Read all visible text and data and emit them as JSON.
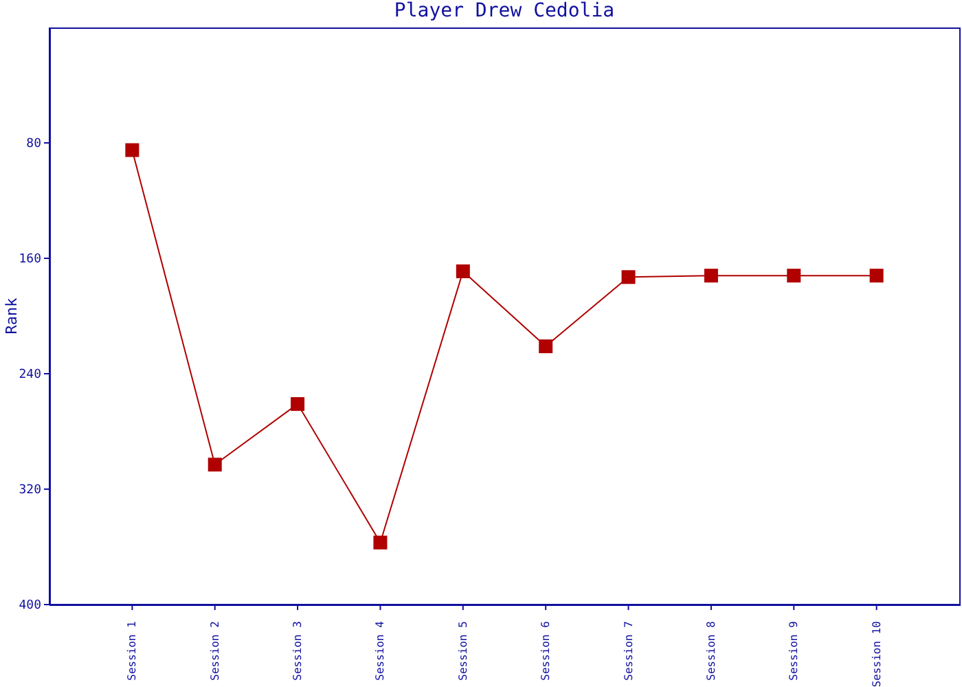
{
  "chart_data": {
    "type": "line",
    "title": "Player Drew Cedolia",
    "ylabel": "Rank",
    "categories": [
      "Session 1",
      "Session 2",
      "Session 3",
      "Session 4",
      "Session 5",
      "Session 6",
      "Session 7",
      "Session 8",
      "Session 9",
      "Session 10"
    ],
    "series": [
      {
        "color": "#b00000",
        "values": [
          85,
          303,
          261,
          357,
          169,
          221,
          173,
          172,
          172,
          172
        ]
      }
    ],
    "ylim": [
      400,
      0
    ],
    "yticks": [
      80,
      160,
      240,
      320,
      400
    ],
    "marker": "square",
    "line_style": "solid",
    "grid": false,
    "legend": false
  }
}
